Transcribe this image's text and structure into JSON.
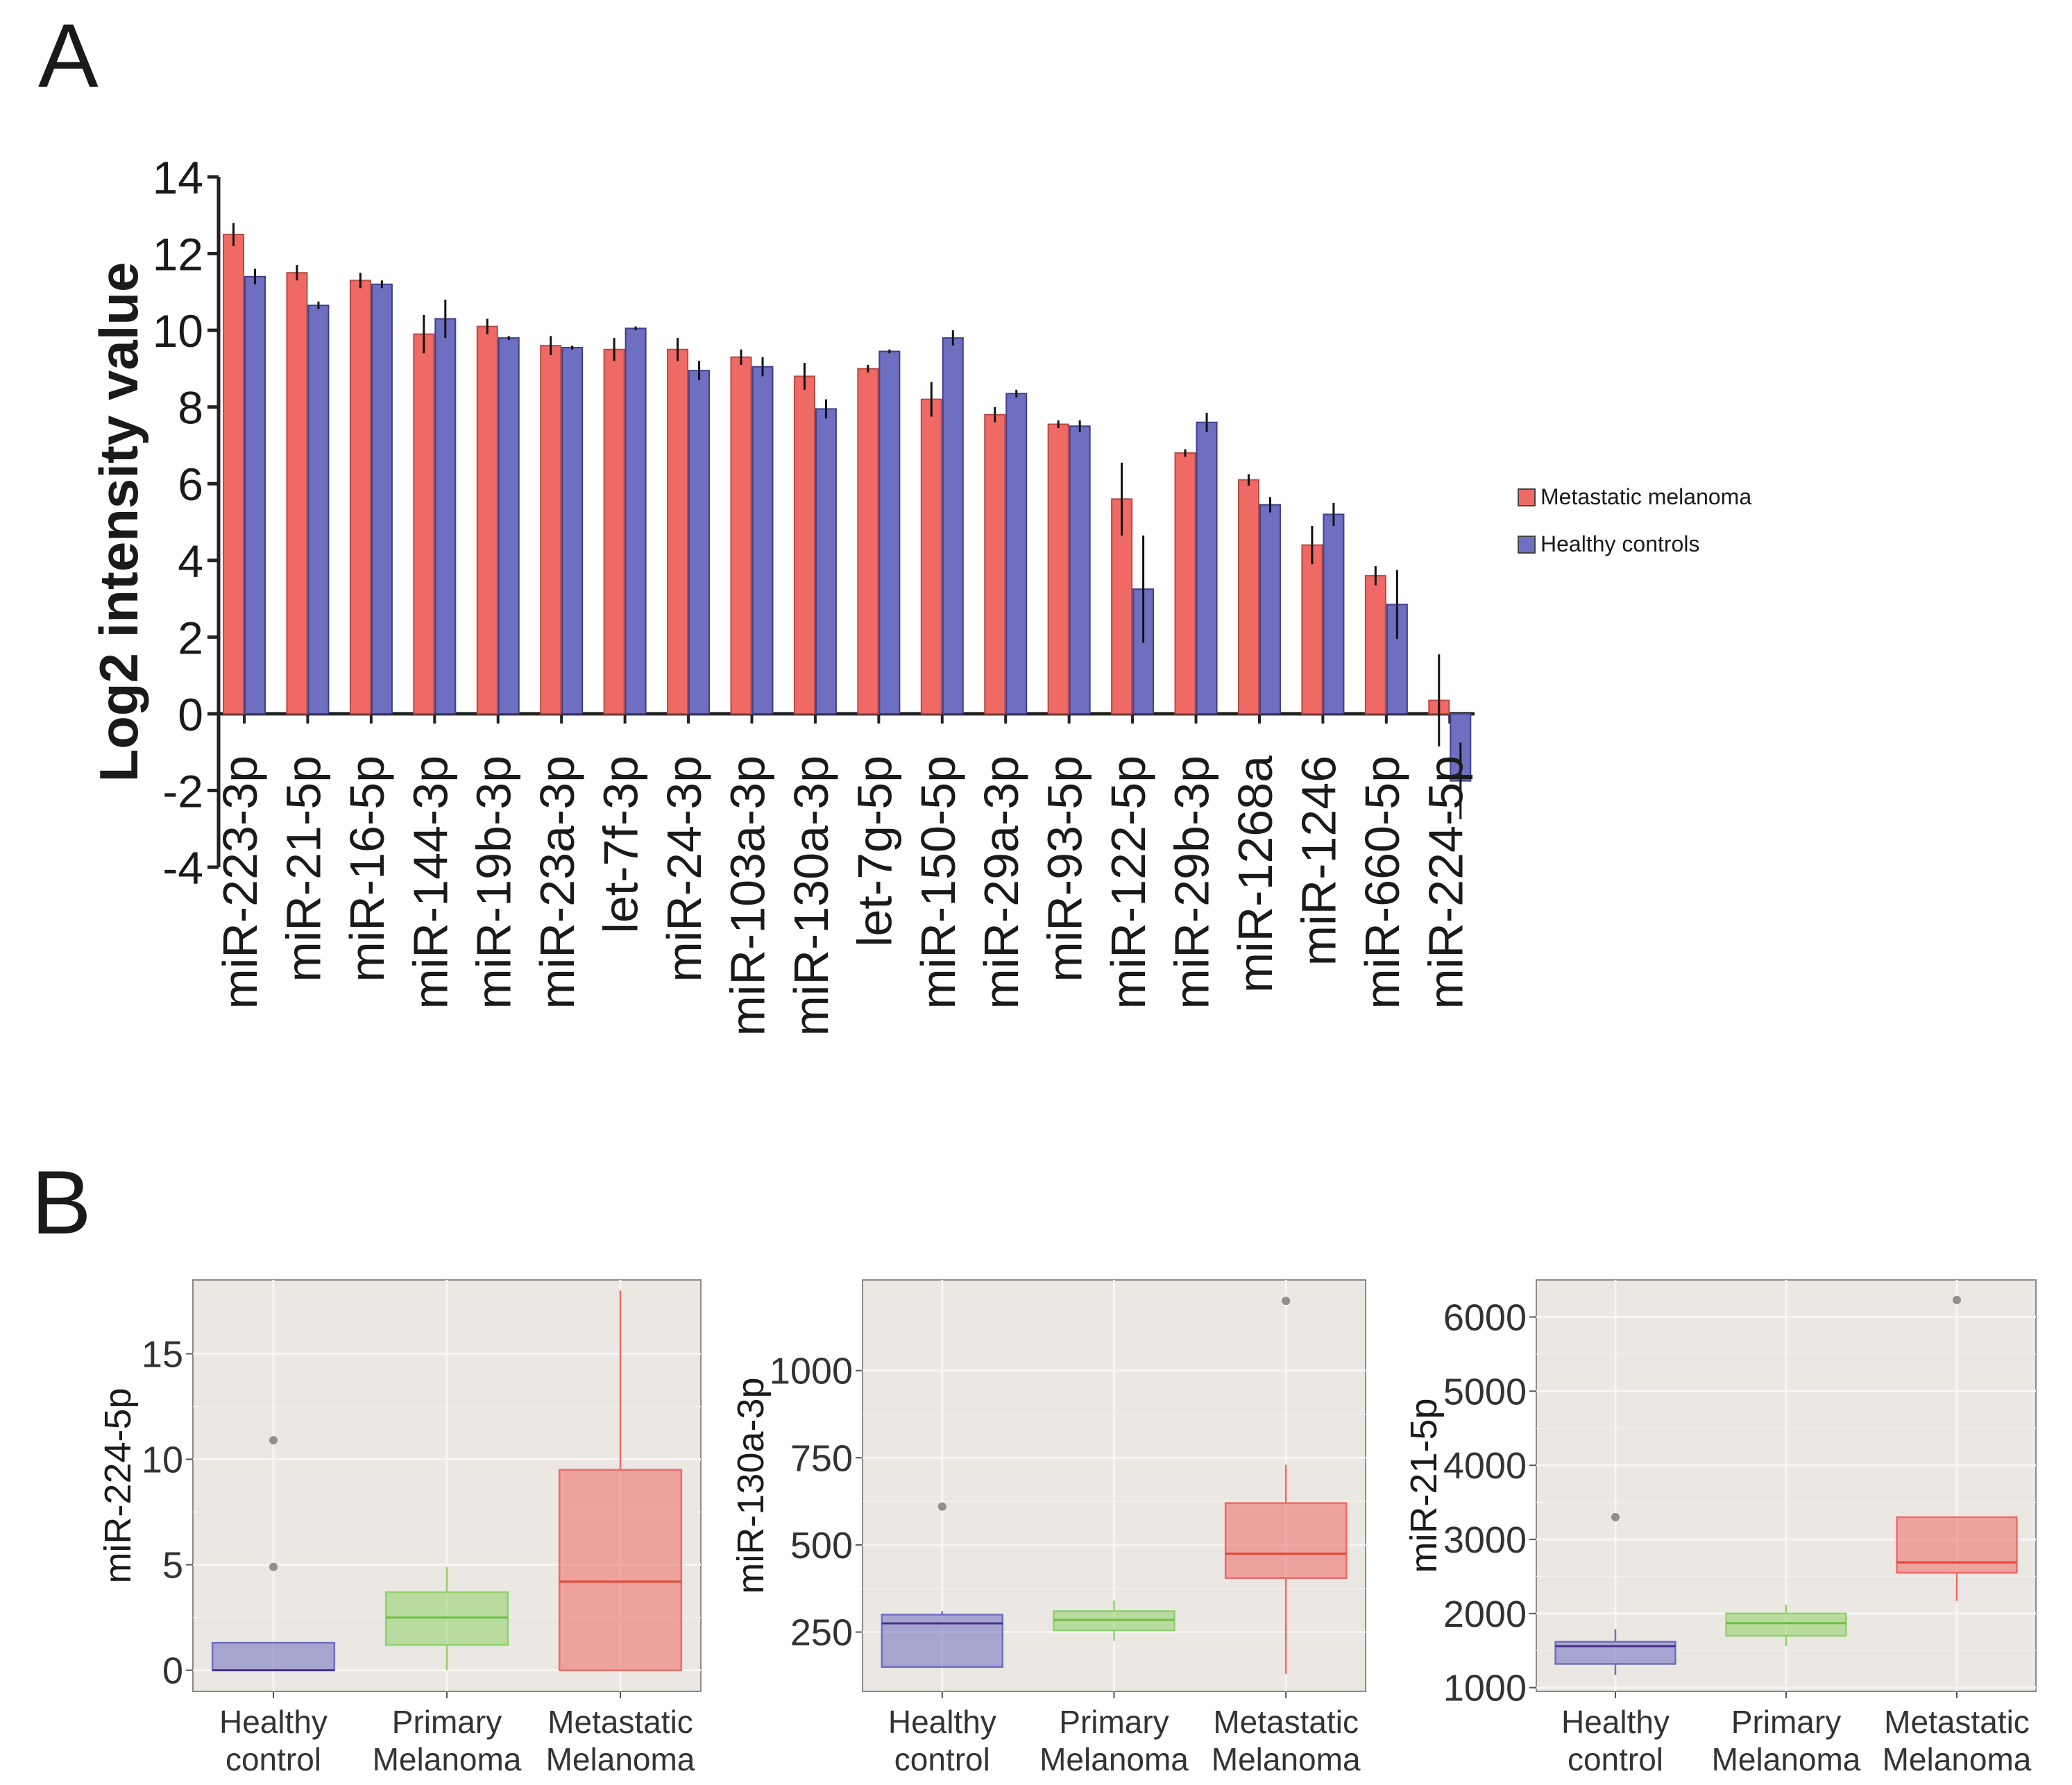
{
  "panel_labels": {
    "a": "A",
    "b": "B"
  },
  "colors": {
    "metastatic_melanoma": "#ef6a64",
    "healthy_controls": "#6e6fc0",
    "primary_melanoma": "#8fd16a",
    "boxplot_panel_bg": "#ebe7e3"
  },
  "chart_data": [
    {
      "type": "bar",
      "ylabel": "Log2 intensity value",
      "xlabel": "",
      "ylim": [
        -4,
        14
      ],
      "yticks": [
        "-4",
        "-2",
        "0",
        "2",
        "4",
        "6",
        "8",
        "10",
        "12",
        "14"
      ],
      "legend_position": "right",
      "categories": [
        "miR-223-3p",
        "miR-21-5p",
        "miR-16-5p",
        "miR-144-3p",
        "miR-19b-3p",
        "miR-23a-3p",
        "let-7f-3p",
        "miR-24-3p",
        "miR-103a-3p",
        "miR-130a-3p",
        "let-7g-5p",
        "miR-150-5p",
        "miR-29a-3p",
        "miR-93-5p",
        "miR-122-5p",
        "miR-29b-3p",
        "miR-1268a",
        "miR-1246",
        "miR-660-5p",
        "miR-224-5p"
      ],
      "series": [
        {
          "name": "Metastatic melanoma",
          "color": "#ef6a64",
          "values": [
            12.5,
            11.5,
            11.3,
            9.9,
            10.1,
            9.6,
            9.5,
            9.5,
            9.3,
            8.8,
            9.0,
            8.2,
            7.8,
            7.55,
            5.6,
            6.8,
            6.1,
            4.4,
            3.6,
            0.35
          ],
          "errors": [
            0.3,
            0.2,
            0.2,
            0.5,
            0.2,
            0.25,
            0.3,
            0.3,
            0.2,
            0.35,
            0.1,
            0.45,
            0.2,
            0.1,
            0.95,
            0.1,
            0.15,
            0.5,
            0.25,
            1.2
          ]
        },
        {
          "name": "Healthy controls",
          "color": "#6e6fc0",
          "values": [
            11.4,
            10.65,
            11.2,
            10.3,
            9.8,
            9.55,
            10.05,
            8.95,
            9.05,
            7.95,
            9.45,
            9.8,
            8.35,
            7.5,
            3.25,
            7.6,
            5.45,
            5.2,
            2.85,
            -1.75
          ],
          "errors": [
            0.2,
            0.1,
            0.1,
            0.5,
            0.05,
            0.05,
            0.05,
            0.25,
            0.25,
            0.25,
            0.05,
            0.2,
            0.1,
            0.15,
            1.4,
            0.25,
            0.2,
            0.3,
            0.9,
            1.0
          ]
        }
      ]
    },
    {
      "type": "box",
      "ylabel": "miR-224-5p",
      "ylim": [
        -1,
        18.5
      ],
      "yticks": [
        "0",
        "5",
        "10",
        "15"
      ],
      "categories": [
        "Healthy\ncontrol",
        "Primary\nMelanoma",
        "Metastatic\nMelanoma"
      ],
      "boxes": [
        {
          "group": "Healthy control",
          "min": 0,
          "q1": 0,
          "median": 0,
          "q3": 1.3,
          "max": 1.3,
          "outliers": [
            4.9,
            10.9
          ]
        },
        {
          "group": "Primary Melanoma",
          "min": 0,
          "q1": 1.2,
          "median": 2.5,
          "q3": 3.7,
          "max": 4.9,
          "outliers": []
        },
        {
          "group": "Metastatic Melanoma",
          "min": 0,
          "q1": 0,
          "median": 4.2,
          "q3": 9.5,
          "max": 18,
          "outliers": []
        }
      ]
    },
    {
      "type": "box",
      "ylabel": "miR-130a-3p",
      "ylim": [
        80,
        1260
      ],
      "yticks": [
        "250",
        "500",
        "750",
        "1000"
      ],
      "categories": [
        "Healthy\ncontrol",
        "Primary\nMelanoma",
        "Metastatic\nMelanoma"
      ],
      "boxes": [
        {
          "group": "Healthy control",
          "min": 150,
          "q1": 150,
          "median": 275,
          "q3": 300,
          "max": 310,
          "outliers": [
            610
          ]
        },
        {
          "group": "Primary Melanoma",
          "min": 225,
          "q1": 255,
          "median": 285,
          "q3": 310,
          "max": 340,
          "outliers": []
        },
        {
          "group": "Metastatic Melanoma",
          "min": 130,
          "q1": 405,
          "median": 475,
          "q3": 620,
          "max": 730,
          "outliers": [
            1200
          ]
        }
      ]
    },
    {
      "type": "box",
      "ylabel": "miR-21-5p",
      "ylim": [
        950,
        6500
      ],
      "yticks": [
        "1000",
        "2000",
        "3000",
        "4000",
        "5000",
        "6000"
      ],
      "categories": [
        "Healthy\ncontrol",
        "Primary\nMelanoma",
        "Metastatic\nMelanoma"
      ],
      "boxes": [
        {
          "group": "Healthy control",
          "min": 1170,
          "q1": 1320,
          "median": 1560,
          "q3": 1620,
          "max": 1790,
          "outliers": [
            3300
          ]
        },
        {
          "group": "Primary Melanoma",
          "min": 1560,
          "q1": 1700,
          "median": 1870,
          "q3": 2000,
          "max": 2120,
          "outliers": []
        },
        {
          "group": "Metastatic Melanoma",
          "min": 2170,
          "q1": 2550,
          "median": 2690,
          "q3": 3300,
          "max": 3300,
          "outliers": [
            6230
          ]
        }
      ]
    }
  ]
}
